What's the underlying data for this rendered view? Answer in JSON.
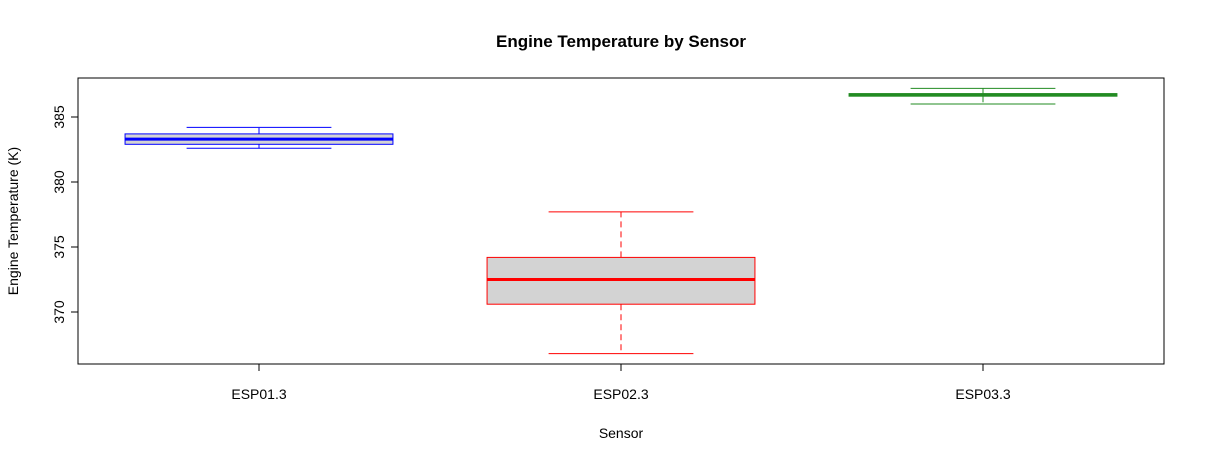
{
  "chart_data": {
    "type": "box",
    "title": "Engine Temperature by Sensor",
    "xlabel": "Sensor",
    "ylabel": "Engine Temperature (K)",
    "ylim": [
      366,
      388
    ],
    "yticks": [
      370,
      375,
      380,
      385
    ],
    "grid": false,
    "categories": [
      "ESP01.3",
      "ESP02.3",
      "ESP03.3"
    ],
    "boxes": [
      {
        "category": "ESP01.3",
        "whisker_low": 382.6,
        "q1": 382.9,
        "median": 383.3,
        "q3": 383.7,
        "whisker_high": 384.2,
        "border_color": "#0000ff",
        "fill_color": "#d3d3d3",
        "median_color": "#0000ff"
      },
      {
        "category": "ESP02.3",
        "whisker_low": 366.8,
        "q1": 370.6,
        "median": 372.5,
        "q3": 374.2,
        "whisker_high": 377.7,
        "border_color": "#ff0000",
        "fill_color": "#d3d3d3",
        "median_color": "#ff0000"
      },
      {
        "category": "ESP03.3",
        "whisker_low": 386.0,
        "q1": 386.6,
        "median": 386.7,
        "q3": 386.8,
        "whisker_high": 387.2,
        "border_color": "#228b22",
        "fill_color": "#d3d3d3",
        "median_color": "#228b22"
      }
    ]
  }
}
